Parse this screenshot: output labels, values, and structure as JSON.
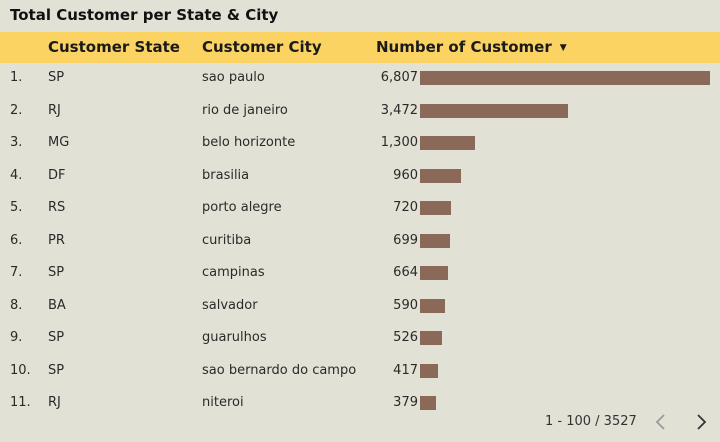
{
  "title": "Total Customer per State & City",
  "columns": {
    "state": "Customer State",
    "city": "Customer City",
    "number": "Number of Customer"
  },
  "sort": {
    "icon": "caret-down-icon",
    "direction": "descending"
  },
  "bar_max": 6807,
  "rows": [
    {
      "idx": "1.",
      "state": "SP",
      "city": "sao paulo",
      "count_label": "6,807",
      "count": 6807
    },
    {
      "idx": "2.",
      "state": "RJ",
      "city": "rio de janeiro",
      "count_label": "3,472",
      "count": 3472
    },
    {
      "idx": "3.",
      "state": "MG",
      "city": "belo horizonte",
      "count_label": "1,300",
      "count": 1300
    },
    {
      "idx": "4.",
      "state": "DF",
      "city": "brasilia",
      "count_label": "960",
      "count": 960
    },
    {
      "idx": "5.",
      "state": "RS",
      "city": "porto alegre",
      "count_label": "720",
      "count": 720
    },
    {
      "idx": "6.",
      "state": "PR",
      "city": "curitiba",
      "count_label": "699",
      "count": 699
    },
    {
      "idx": "7.",
      "state": "SP",
      "city": "campinas",
      "count_label": "664",
      "count": 664
    },
    {
      "idx": "8.",
      "state": "BA",
      "city": "salvador",
      "count_label": "590",
      "count": 590
    },
    {
      "idx": "9.",
      "state": "SP",
      "city": "guarulhos",
      "count_label": "526",
      "count": 526
    },
    {
      "idx": "10.",
      "state": "SP",
      "city": "sao bernardo do campo",
      "count_label": "417",
      "count": 417
    },
    {
      "idx": "11.",
      "state": "RJ",
      "city": "niteroi",
      "count_label": "379",
      "count": 379
    }
  ],
  "pagination": {
    "label": "1 - 100 / 3527",
    "prev_icon": "chevron-left-icon",
    "next_icon": "chevron-right-icon"
  },
  "colors": {
    "background": "#e2e1d6",
    "header": "#fbd362",
    "bar": "#8b6959"
  }
}
